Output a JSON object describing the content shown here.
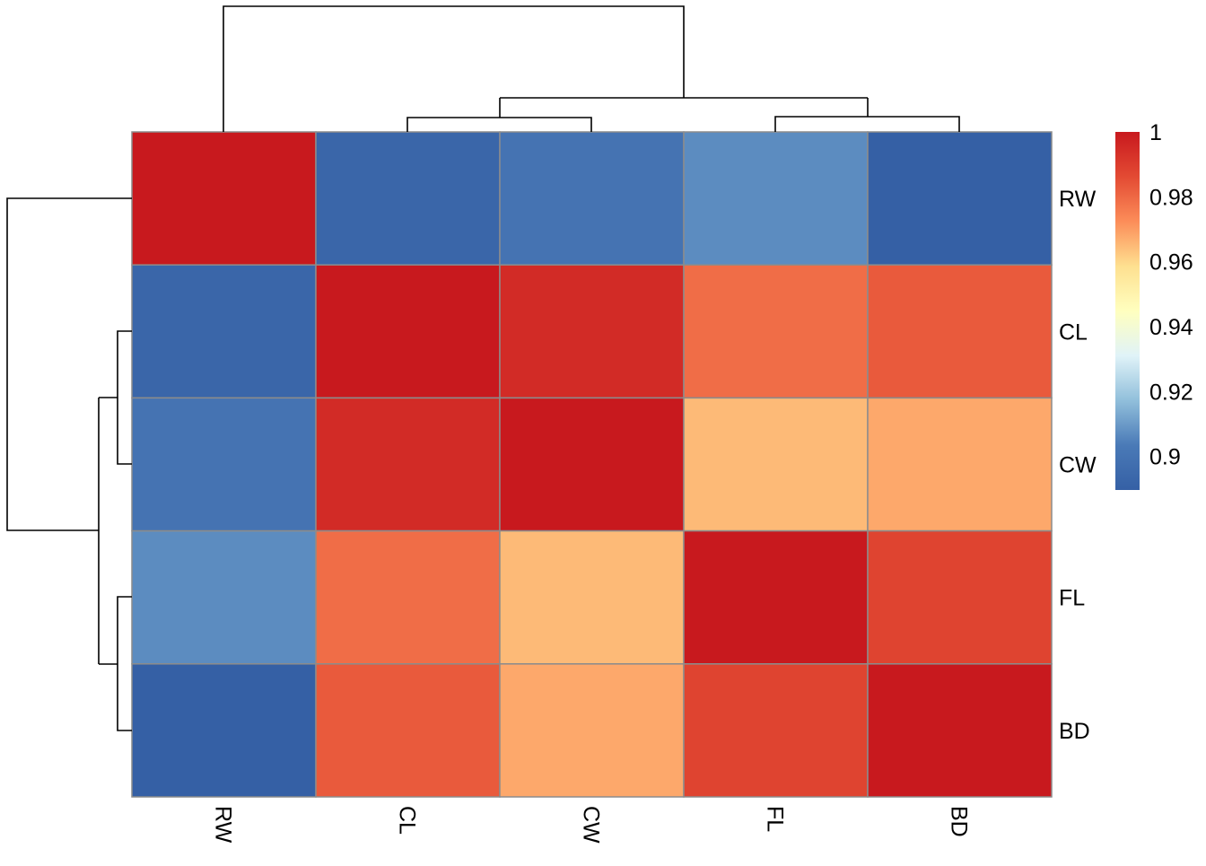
{
  "chart_data": {
    "type": "heatmap",
    "title": "",
    "rows": [
      "RW",
      "CL",
      "CW",
      "FL",
      "BD"
    ],
    "columns": [
      "RW",
      "CL",
      "CW",
      "FL",
      "BD"
    ],
    "values": [
      [
        1.0,
        0.893,
        0.9,
        0.907,
        0.889
      ],
      [
        0.893,
        1.0,
        0.995,
        0.979,
        0.983
      ],
      [
        0.9,
        0.995,
        1.0,
        0.965,
        0.968
      ],
      [
        0.907,
        0.979,
        0.965,
        1.0,
        0.988
      ],
      [
        0.889,
        0.983,
        0.968,
        0.988,
        1.0
      ]
    ],
    "color_range": [
      0.8897,
      1.0
    ],
    "palette": [
      "#3560A5",
      "#4A7AB7",
      "#91BFDB",
      "#E0F3F8",
      "#FFFFBF",
      "#FEE090",
      "#FC8D59",
      "#E34A33",
      "#C8191E"
    ],
    "legend": {
      "ticks": [
        1,
        0.98,
        0.96,
        0.94,
        0.92,
        0.9
      ],
      "labels": [
        "1",
        "0.98",
        "0.96",
        "0.94",
        "0.92",
        "0.9"
      ],
      "placement": "right"
    },
    "row_dendrogram": "(RW,((CL,CW),(FL,BD)))",
    "column_dendrogram": "(RW,((CL,CW),(FL,BD)))"
  }
}
